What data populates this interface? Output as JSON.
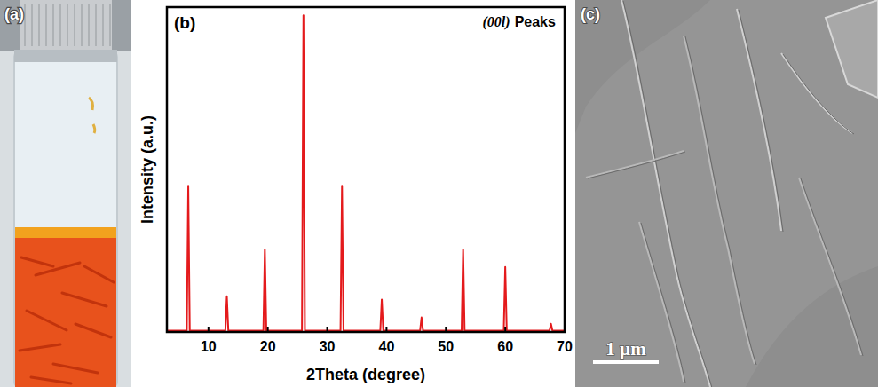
{
  "figure": {
    "panel_labels": [
      "(a)",
      "(b)",
      "(c)"
    ],
    "scale_bar": "1 µm"
  },
  "chart_data": {
    "type": "line",
    "annotations": [
      "(00l)",
      "Peaks"
    ],
    "x_label": "2Theta (degree)",
    "y_label": "Intensity (a.u.)",
    "x": [
      3,
      6.35,
      6.6,
      6.85,
      12.85,
      13.1,
      13.35,
      19.25,
      19.5,
      19.75,
      25.75,
      26.0,
      26.25,
      32.25,
      32.5,
      32.75,
      38.95,
      39.2,
      39.45,
      45.65,
      45.9,
      46.15,
      52.65,
      52.9,
      53.15,
      59.75,
      60.0,
      60.25,
      67.45,
      67.7,
      67.95,
      70
    ],
    "values": [
      0.4,
      0.4,
      45,
      0.4,
      0.4,
      11,
      0.4,
      0.4,
      25.5,
      0.4,
      0.4,
      97.5,
      0.4,
      0.4,
      45,
      0.4,
      0.4,
      10,
      0.4,
      0.4,
      4.5,
      0.4,
      0.4,
      25.5,
      0.4,
      0.4,
      20,
      0.4,
      0.4,
      2.5,
      0.4,
      0.4
    ],
    "color": "#e41a1c",
    "xlim": [
      3,
      70
    ],
    "xticks": [
      10,
      20,
      30,
      40,
      50,
      60,
      70
    ],
    "ylim": [
      0,
      100
    ],
    "tick_labels": "x",
    "grid": false
  }
}
